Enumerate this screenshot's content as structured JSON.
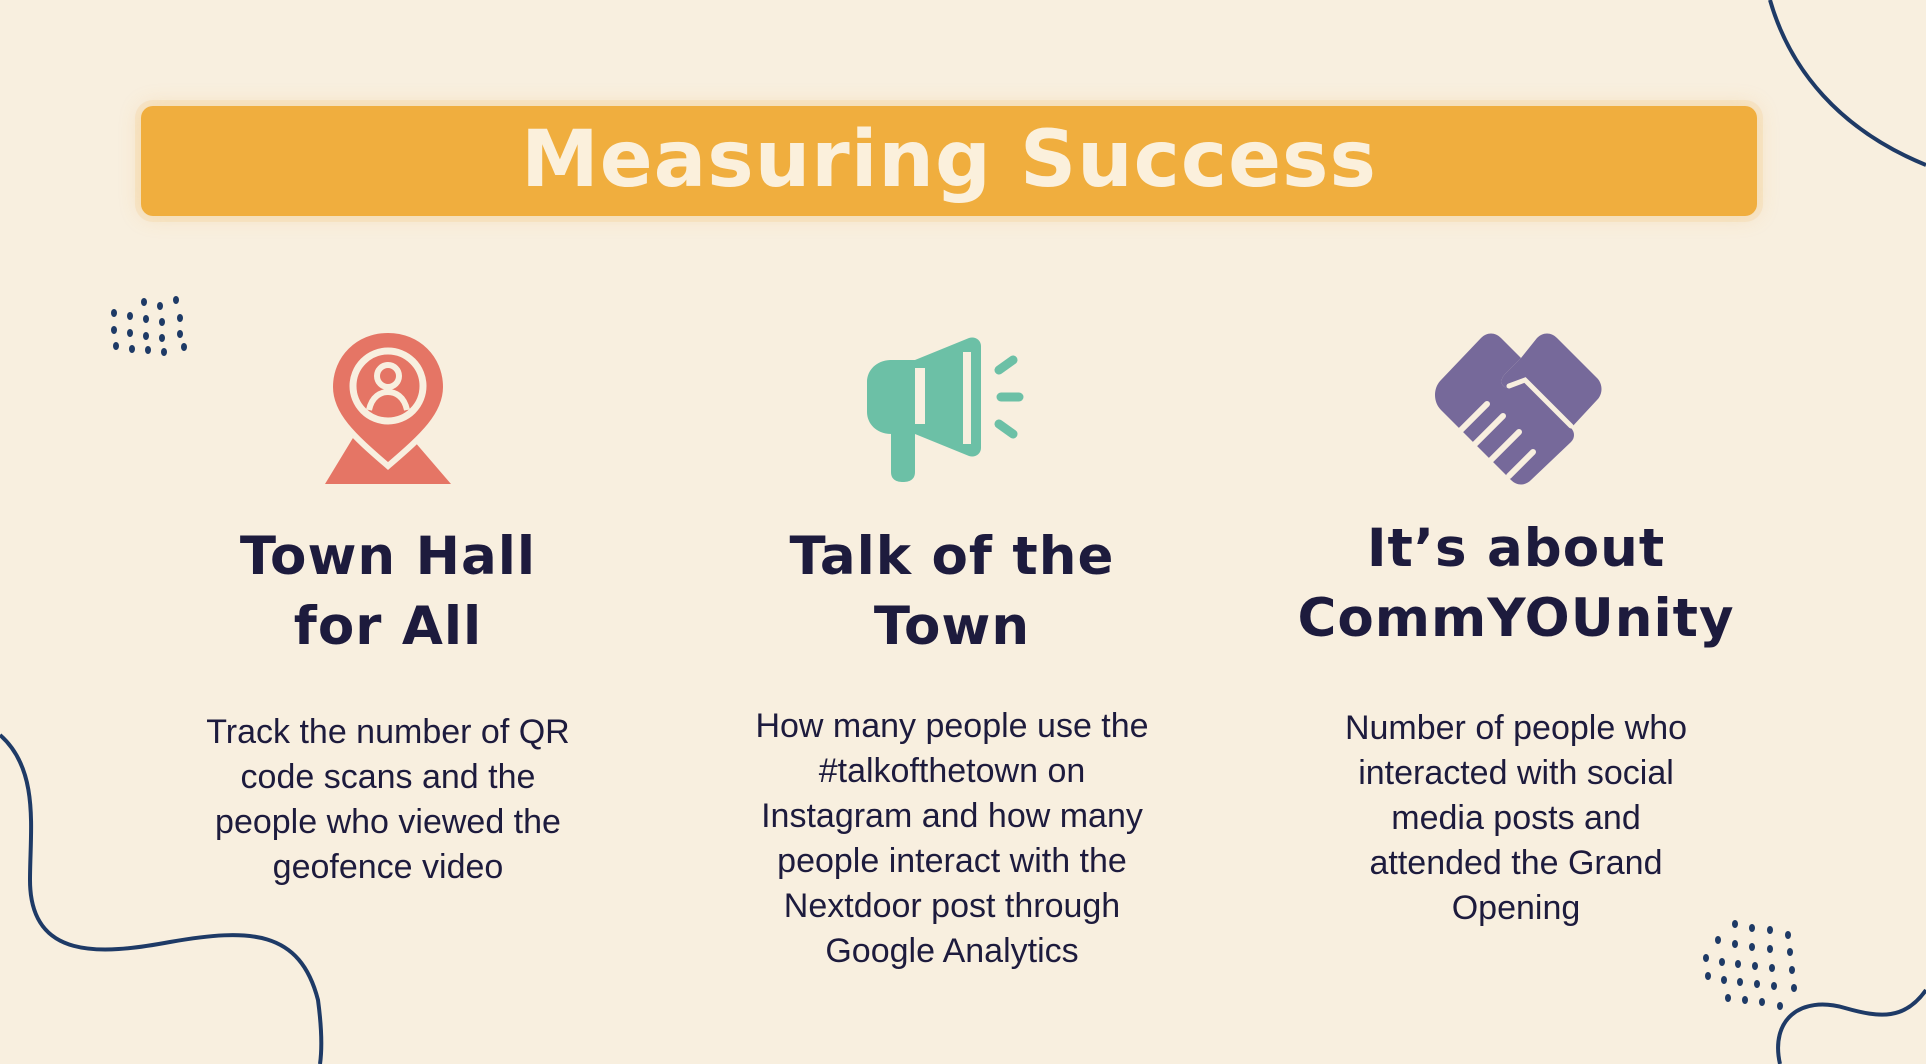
{
  "title": "Measuring Success",
  "colors": {
    "background": "#f8efdf",
    "banner": "#f0ae3e",
    "title_text": "#fbf0dc",
    "heading_text": "#1d1b3d",
    "decoration": "#1e3a66",
    "icon_location": "#e57565",
    "icon_megaphone": "#6cc0a6",
    "icon_handshake": "#76699a"
  },
  "columns": [
    {
      "icon": "location-pin-person-icon",
      "heading_lines": [
        "Town Hall",
        "for All"
      ],
      "body_lines": [
        "Track the number of QR",
        "code scans and the",
        "people who viewed the",
        "geofence video"
      ]
    },
    {
      "icon": "megaphone-icon",
      "heading_lines": [
        "Talk of the",
        "Town"
      ],
      "body_lines": [
        "How many people use the",
        "#talkofthetown on",
        "Instagram and how many",
        "people interact with the",
        "Nextdoor post through",
        "Google Analytics"
      ]
    },
    {
      "icon": "handshake-icon",
      "heading_lines": [
        "It’s about",
        "CommYOUnity"
      ],
      "body_lines": [
        "Number of people who",
        "interacted with social",
        "media posts and",
        "attended the Grand",
        "Opening"
      ]
    }
  ]
}
